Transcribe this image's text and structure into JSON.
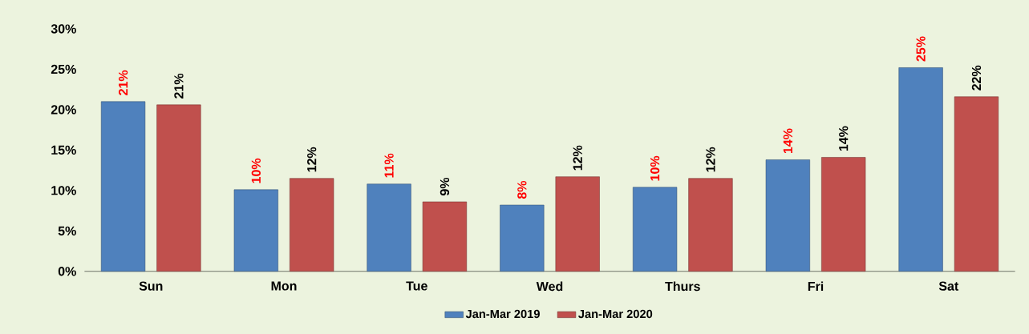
{
  "chart_data": {
    "type": "bar",
    "categories": [
      "Sun",
      "Mon",
      "Tue",
      "Wed",
      "Thurs",
      "Fri",
      "Sat"
    ],
    "series": [
      {
        "name": "Jan-Mar 2019",
        "color": "#4f81bd",
        "values": [
          21.0,
          10.1,
          10.8,
          8.2,
          10.4,
          13.8,
          25.2
        ],
        "value_labels": [
          "21%",
          "10%",
          "11%",
          "8%",
          "10%",
          "14%",
          "25%"
        ]
      },
      {
        "name": "Jan-Mar 2020",
        "color": "#c0504d",
        "values": [
          20.6,
          11.5,
          8.6,
          11.7,
          11.5,
          14.1,
          21.6
        ],
        "value_labels": [
          "21%",
          "12%",
          "9%",
          "12%",
          "12%",
          "14%",
          "22%"
        ]
      }
    ],
    "ylim": [
      0,
      30
    ],
    "yticks": [
      {
        "value": 0,
        "label": "0%"
      },
      {
        "value": 5,
        "label": "5%"
      },
      {
        "value": 10,
        "label": "10%"
      },
      {
        "value": 15,
        "label": "15%"
      },
      {
        "value": 20,
        "label": "20%"
      },
      {
        "value": 25,
        "label": "25%"
      },
      {
        "value": 30,
        "label": "30%"
      }
    ],
    "legend": "bottom"
  }
}
